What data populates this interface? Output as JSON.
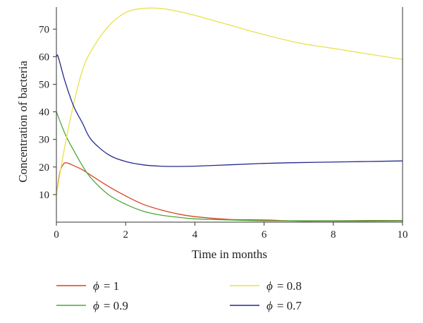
{
  "chart_data": {
    "type": "line",
    "title": "",
    "xlabel": "Time in months",
    "ylabel": "Concentration of bacteria",
    "xlim": [
      0,
      10
    ],
    "ylim": [
      0,
      78
    ],
    "xticks": [
      0,
      2,
      4,
      6,
      8,
      10
    ],
    "yticks": [
      10,
      20,
      30,
      40,
      50,
      60,
      70
    ],
    "grid": false,
    "legend_position": "bottom",
    "series": [
      {
        "name": "ϕ = 1",
        "legend_symbol": "ϕ",
        "legend_value": "= 1",
        "color": "#d9441f",
        "x": [
          0,
          0.1,
          0.2,
          0.3,
          0.5,
          0.75,
          1,
          1.5,
          2,
          2.5,
          3,
          3.5,
          4,
          5,
          6,
          7,
          8,
          9,
          10
        ],
        "y": [
          10,
          18,
          21,
          21.5,
          20.5,
          19,
          17,
          13,
          9.5,
          6.5,
          4.5,
          3,
          2,
          1,
          0.8,
          0.4,
          0.4,
          0.4,
          0.5
        ]
      },
      {
        "name": "ϕ = 0.9",
        "legend_symbol": "ϕ",
        "legend_value": "= 0.9",
        "color": "#4aa83a",
        "x": [
          0,
          0.25,
          0.5,
          0.75,
          1,
          1.5,
          2,
          2.5,
          3,
          3.5,
          4,
          5,
          6,
          7,
          8,
          9,
          10
        ],
        "y": [
          40,
          32,
          26,
          20.5,
          16,
          10,
          6.5,
          4,
          2.6,
          1.8,
          1.2,
          0.8,
          0.5,
          0.5,
          0.5,
          0.6,
          0.6
        ]
      },
      {
        "name": "ϕ = 0.8",
        "legend_symbol": "ϕ",
        "legend_value": "= 0.8",
        "color": "#e8e14a",
        "x": [
          0,
          0.25,
          0.5,
          0.75,
          1,
          1.5,
          2,
          2.5,
          3,
          3.5,
          4,
          5,
          6,
          7,
          8,
          9,
          10
        ],
        "y": [
          10,
          28,
          43,
          55,
          62,
          71,
          76,
          77.5,
          77.5,
          76.5,
          75,
          71.5,
          68,
          65,
          63,
          61,
          59
        ]
      },
      {
        "name": "ϕ = 0.7",
        "legend_symbol": "ϕ",
        "legend_value": "= 0.7",
        "color": "#232a8e",
        "x": [
          0,
          0.05,
          0.25,
          0.5,
          0.75,
          1,
          1.5,
          2,
          2.5,
          3,
          3.5,
          4,
          5,
          6,
          7,
          8,
          9,
          10
        ],
        "y": [
          60,
          60,
          51,
          42,
          36,
          30,
          24.5,
          22,
          20.8,
          20.3,
          20.2,
          20.3,
          20.8,
          21.3,
          21.6,
          21.8,
          22,
          22.2
        ]
      }
    ]
  }
}
